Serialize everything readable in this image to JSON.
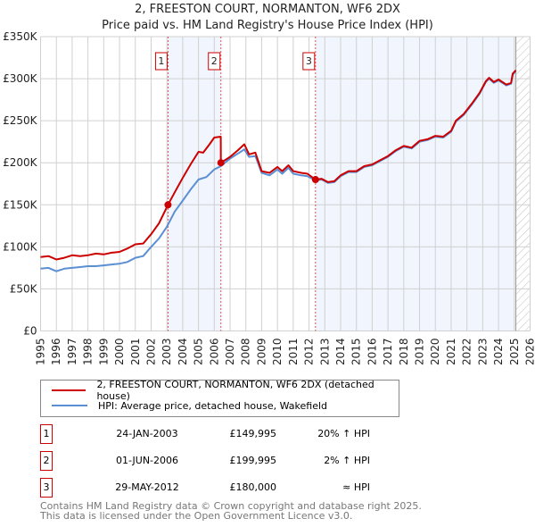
{
  "chart_data": {
    "type": "line",
    "title": "2, FREESTON COURT, NORMANTON, WF6 2DX",
    "subtitle": "Price paid vs. HM Land Registry's House Price Index (HPI)",
    "xlim": [
      1995,
      2026
    ],
    "ylim": [
      0,
      350000
    ],
    "x_ticks": [
      "1995",
      "1996",
      "1997",
      "1998",
      "1999",
      "2000",
      "2001",
      "2002",
      "2003",
      "2004",
      "2005",
      "2006",
      "2007",
      "2008",
      "2009",
      "2010",
      "2011",
      "2012",
      "2013",
      "2014",
      "2015",
      "2016",
      "2017",
      "2018",
      "2019",
      "2020",
      "2021",
      "2022",
      "2023",
      "2024",
      "2025",
      "2026"
    ],
    "y_ticks": [
      {
        "value": 0,
        "label": "£0"
      },
      {
        "value": 50000,
        "label": "£50K"
      },
      {
        "value": 100000,
        "label": "£100K"
      },
      {
        "value": 150000,
        "label": "£150K"
      },
      {
        "value": 200000,
        "label": "£200K"
      },
      {
        "value": 250000,
        "label": "£250K"
      },
      {
        "value": 300000,
        "label": "£300K"
      },
      {
        "value": 350000,
        "label": "£350K"
      }
    ],
    "grid": true,
    "shaded_ranges": [
      [
        2003.07,
        2006.42
      ],
      [
        2012.41,
        2025.1
      ]
    ],
    "forecast_hatch_from": 2025.1,
    "series": [
      {
        "name": "2, FREESTON COURT, NORMANTON, WF6 2DX (detached house)",
        "color": "#cc0000",
        "x": [
          1995,
          1995.5,
          1996,
          1996.5,
          1997,
          1997.5,
          1998,
          1998.5,
          1999,
          1999.5,
          2000,
          2000.5,
          2001,
          2001.5,
          2002,
          2002.5,
          2003.07,
          2003.5,
          2004,
          2004.5,
          2005,
          2005.3,
          2005.7,
          2006,
          2006.41,
          2006.42,
          2007,
          2007.5,
          2007.9,
          2008.2,
          2008.6,
          2009,
          2009.5,
          2010,
          2010.3,
          2010.7,
          2011,
          2011.5,
          2011.9,
          2012.41,
          2012.8,
          2013.2,
          2013.6,
          2014,
          2014.5,
          2015,
          2015.5,
          2016,
          2016.5,
          2017,
          2017.5,
          2018,
          2018.5,
          2019,
          2019.5,
          2020,
          2020.5,
          2021,
          2021.3,
          2021.8,
          2022.3,
          2022.8,
          2023.2,
          2023.4,
          2023.7,
          2024,
          2024.5,
          2024.8,
          2024.9,
          2025.1
        ],
        "y": [
          88000,
          89000,
          85000,
          87000,
          90000,
          89000,
          90000,
          92000,
          91000,
          93000,
          94000,
          98000,
          103000,
          104000,
          115000,
          128000,
          149995,
          165000,
          182000,
          198000,
          213000,
          212000,
          222000,
          230000,
          231000,
          199995,
          207000,
          215000,
          222000,
          210000,
          212000,
          190000,
          188000,
          195000,
          190000,
          197000,
          190000,
          188000,
          187000,
          180000,
          181000,
          177000,
          178000,
          185000,
          190000,
          190000,
          196000,
          198000,
          203000,
          208000,
          215000,
          220000,
          218000,
          226000,
          228000,
          232000,
          231000,
          238000,
          250000,
          258000,
          270000,
          283000,
          297000,
          301000,
          296000,
          299000,
          293000,
          295000,
          306000,
          310000
        ]
      },
      {
        "name": "HPI: Average price, detached house, Wakefield",
        "color": "#5b8fd4",
        "x": [
          1995,
          1995.5,
          1996,
          1996.5,
          1997,
          1997.5,
          1998,
          1998.5,
          1999,
          1999.5,
          2000,
          2000.5,
          2001,
          2001.5,
          2002,
          2002.5,
          2003,
          2003.5,
          2004,
          2004.5,
          2005,
          2005.5,
          2006,
          2006.42,
          2007,
          2007.5,
          2007.9,
          2008.2,
          2008.6,
          2009,
          2009.5,
          2010,
          2010.3,
          2010.7,
          2011,
          2011.5,
          2011.9,
          2012.41,
          2012.8,
          2013.2,
          2013.6,
          2014,
          2014.5,
          2015,
          2015.5,
          2016,
          2016.5,
          2017,
          2017.5,
          2018,
          2018.5,
          2019,
          2019.5,
          2020,
          2020.5,
          2021,
          2021.3,
          2021.8,
          2022.3,
          2022.8,
          2023.2,
          2023.4,
          2023.7,
          2024,
          2024.5,
          2024.8,
          2024.9,
          2025.1
        ],
        "y": [
          74000,
          75000,
          71000,
          74000,
          75000,
          76000,
          77000,
          77000,
          78000,
          79000,
          80000,
          82000,
          87000,
          89000,
          100000,
          110000,
          124000,
          142000,
          155000,
          168000,
          180000,
          183000,
          192000,
          196000,
          205000,
          211000,
          216000,
          207000,
          208000,
          188000,
          185000,
          192000,
          187000,
          194000,
          187000,
          185000,
          184000,
          179000,
          180000,
          176000,
          177000,
          184000,
          189000,
          189000,
          195000,
          197000,
          202000,
          207000,
          214000,
          219000,
          217000,
          225000,
          227000,
          231000,
          230000,
          237000,
          249000,
          257000,
          269000,
          282000,
          296000,
          300000,
          295000,
          298000,
          292000,
          294000,
          305000,
          309000
        ]
      }
    ],
    "sales": [
      {
        "id": "1",
        "date": "24-JAN-2003",
        "x": 2003.07,
        "price": "£149,995",
        "value": 149995,
        "hpi": "20% ↑ HPI"
      },
      {
        "id": "2",
        "date": "01-JUN-2006",
        "x": 2006.42,
        "price": "£199,995",
        "value": 199995,
        "hpi": "2% ↑ HPI"
      },
      {
        "id": "3",
        "date": "29-MAY-2012",
        "x": 2012.41,
        "price": "£180,000",
        "value": 180000,
        "hpi": "≈ HPI"
      }
    ]
  },
  "footer": {
    "line1": "Contains HM Land Registry data © Crown copyright and database right 2025.",
    "line2": "This data is licensed under the Open Government Licence v3.0."
  }
}
